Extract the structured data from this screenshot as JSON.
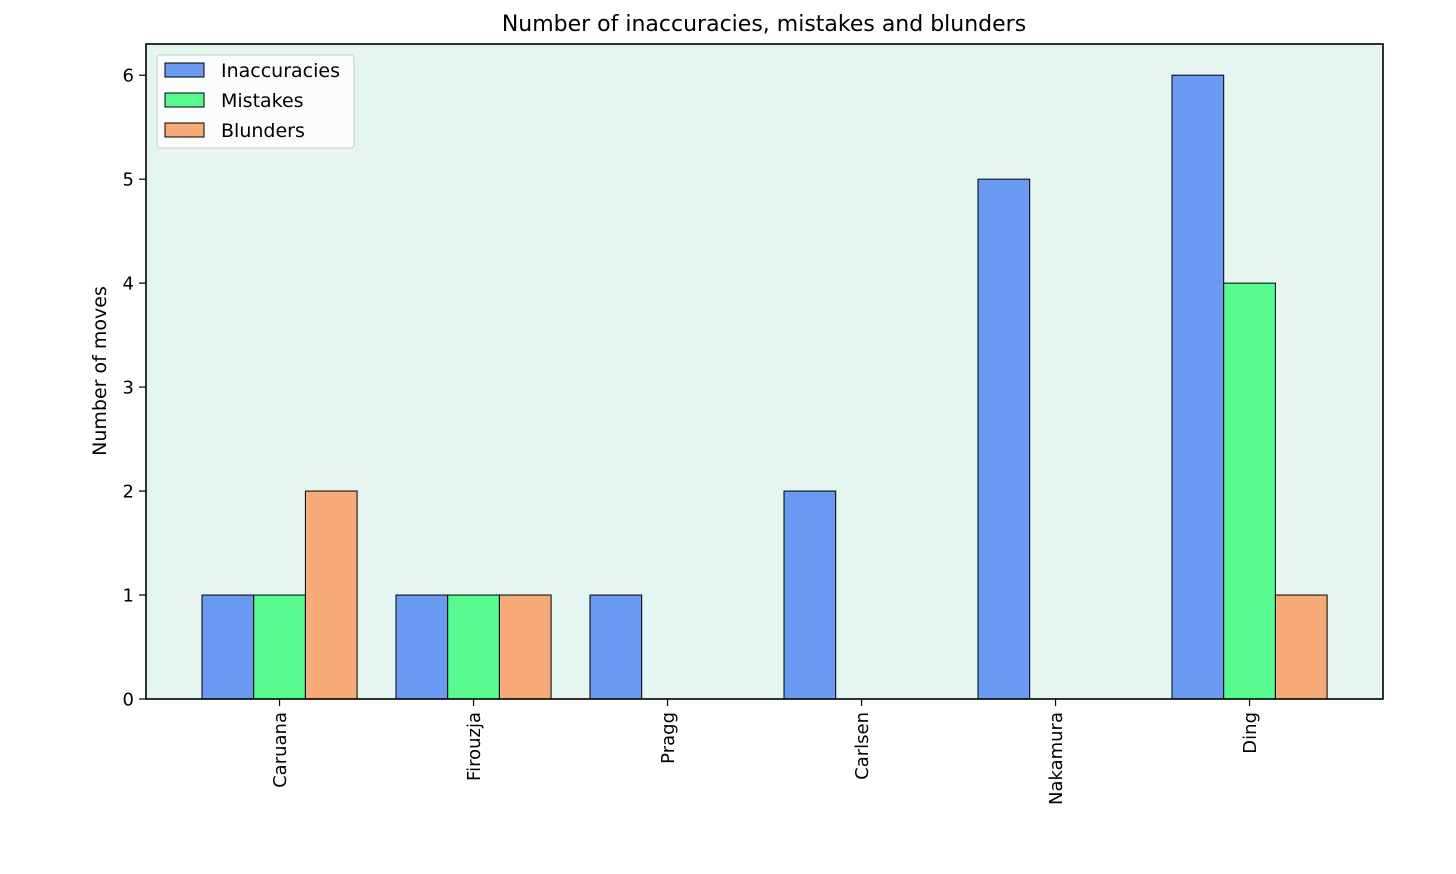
{
  "chart_data": {
    "type": "bar",
    "title": "Number of inaccuracies, mistakes and blunders",
    "xlabel": "",
    "ylabel": "Number of moves",
    "categories": [
      "Caruana",
      "Firouzja",
      "Pragg",
      "Carlsen",
      "Nakamura",
      "Ding"
    ],
    "series": [
      {
        "name": "Inaccuracies",
        "values": [
          1,
          1,
          1,
          2,
          5,
          6
        ],
        "color": "#6a9af2"
      },
      {
        "name": "Mistakes",
        "values": [
          1,
          1,
          0,
          0,
          0,
          4
        ],
        "color": "#57fa8e"
      },
      {
        "name": "Blunders",
        "values": [
          2,
          1,
          0,
          0,
          0,
          1
        ],
        "color": "#f7ab78"
      }
    ],
    "ylim": [
      0,
      6.3
    ],
    "yticks": [
      "0",
      "1",
      "2",
      "3",
      "4",
      "5",
      "6"
    ],
    "plot_background": "#e5f5ef",
    "grid": false,
    "legend_position": "top-left",
    "x_tick_rotation": "vertical"
  }
}
